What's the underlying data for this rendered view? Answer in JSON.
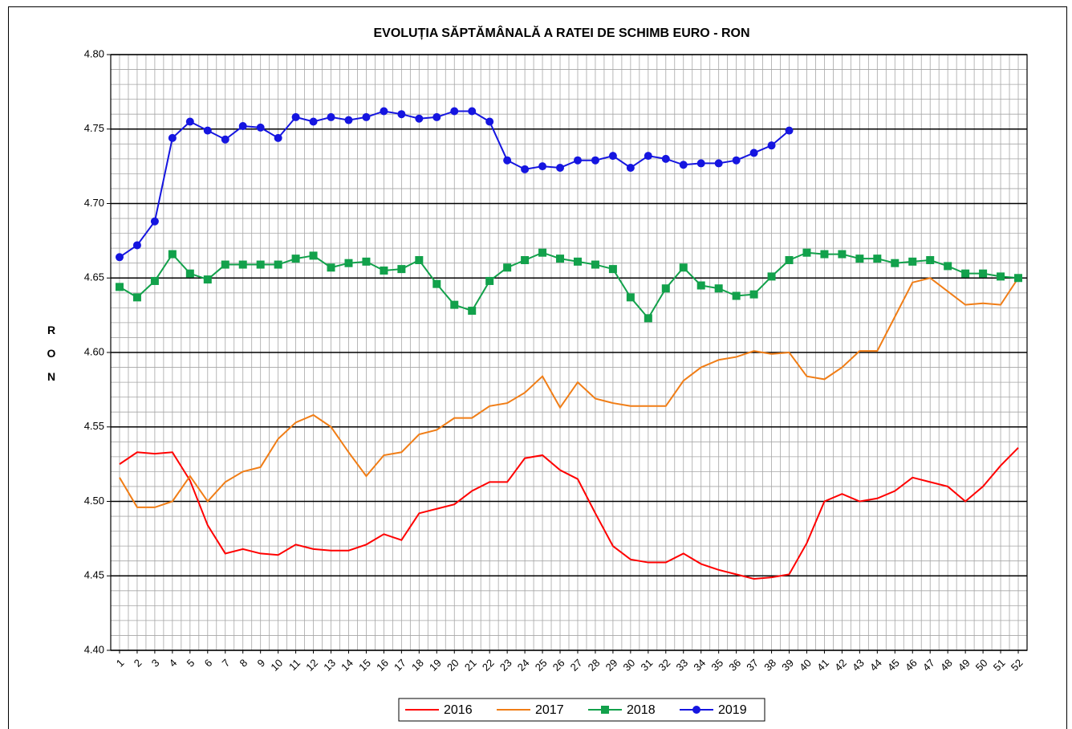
{
  "chart_data": {
    "type": "line",
    "title": "EVOLUȚIA SĂPTĂMÂNALĂ A RATEI DE SCHIMB EURO - RON",
    "y_label": "RON",
    "categories": [
      "1",
      "2",
      "3",
      "4",
      "5",
      "6",
      "7",
      "8",
      "9",
      "10",
      "11",
      "12",
      "13",
      "14",
      "15",
      "16",
      "17",
      "18",
      "19",
      "20",
      "21",
      "22",
      "23",
      "24",
      "25",
      "26",
      "27",
      "28",
      "29",
      "30",
      "31",
      "32",
      "33",
      "34",
      "35",
      "36",
      "37",
      "38",
      "39",
      "40",
      "41",
      "42",
      "43",
      "44",
      "45",
      "46",
      "47",
      "48",
      "49",
      "50",
      "51",
      "52"
    ],
    "ylim": [
      4.4,
      4.8
    ],
    "yticks": [
      {
        "value": 4.4,
        "label": "4.40"
      },
      4.45,
      {
        "value": 4.5,
        "label": "4.50"
      },
      4.55,
      {
        "value": 4.6,
        "label": "4.60"
      },
      4.65,
      {
        "value": 4.7,
        "label": "4.70"
      },
      4.75,
      {
        "value": 4.8,
        "label": "4.80"
      }
    ],
    "grid": true,
    "legend": "bottom",
    "series": [
      {
        "name": "2016",
        "color": "#ff0000",
        "marker": null,
        "values": [
          4.525,
          4.533,
          4.532,
          4.533,
          4.514,
          4.484,
          4.465,
          4.468,
          4.465,
          4.464,
          4.471,
          4.468,
          4.467,
          4.467,
          4.471,
          4.478,
          4.474,
          4.492,
          4.495,
          4.498,
          4.507,
          4.513,
          4.513,
          4.529,
          4.531,
          4.521,
          4.515,
          4.492,
          4.47,
          4.461,
          4.459,
          4.459,
          4.465,
          4.458,
          4.454,
          4.451,
          4.448,
          4.449,
          4.451,
          4.472,
          4.5,
          4.505,
          4.5,
          4.502,
          4.507,
          4.516,
          4.513,
          4.51,
          4.5,
          4.51,
          4.524,
          4.536
        ]
      },
      {
        "name": "2017",
        "color": "#f07d16",
        "marker": null,
        "values": [
          4.516,
          4.496,
          4.496,
          4.5,
          4.517,
          4.5,
          4.513,
          4.52,
          4.523,
          4.542,
          4.553,
          4.558,
          4.55,
          4.533,
          4.517,
          4.531,
          4.533,
          4.545,
          4.548,
          4.556,
          4.556,
          4.564,
          4.566,
          4.573,
          4.584,
          4.563,
          4.58,
          4.569,
          4.566,
          4.564,
          4.564,
          4.564,
          4.581,
          4.59,
          4.595,
          4.597,
          4.601,
          4.599,
          4.6,
          4.584,
          4.582,
          4.59,
          4.601,
          4.601,
          4.624,
          4.647,
          4.65,
          4.641,
          4.632,
          4.633,
          4.632,
          4.65
        ]
      },
      {
        "name": "2018",
        "color": "#12a14b",
        "marker": "square",
        "values": [
          4.644,
          4.637,
          4.648,
          4.666,
          4.653,
          4.649,
          4.659,
          4.659,
          4.659,
          4.659,
          4.663,
          4.665,
          4.657,
          4.66,
          4.661,
          4.655,
          4.656,
          4.662,
          4.646,
          4.632,
          4.628,
          4.648,
          4.657,
          4.662,
          4.667,
          4.663,
          4.661,
          4.659,
          4.656,
          4.637,
          4.623,
          4.643,
          4.657,
          4.645,
          4.643,
          4.638,
          4.639,
          4.651,
          4.662,
          4.667,
          4.666,
          4.666,
          4.663,
          4.663,
          4.66,
          4.661,
          4.662,
          4.658,
          4.653,
          4.653,
          4.651,
          4.65
        ]
      },
      {
        "name": "2019",
        "color": "#1515e0",
        "marker": "circle",
        "values": [
          4.664,
          4.672,
          4.688,
          4.744,
          4.755,
          4.749,
          4.743,
          4.752,
          4.751,
          4.744,
          4.758,
          4.755,
          4.758,
          4.756,
          4.758,
          4.762,
          4.76,
          4.757,
          4.758,
          4.762,
          4.762,
          4.755,
          4.729,
          4.723,
          4.725,
          4.724,
          4.729,
          4.729,
          4.732,
          4.724,
          4.732,
          4.73,
          4.726,
          4.727,
          4.727,
          4.729,
          4.734,
          4.739,
          4.749,
          null,
          null,
          null,
          null,
          null,
          null,
          null,
          null,
          null,
          null,
          null,
          null,
          null
        ]
      }
    ]
  }
}
